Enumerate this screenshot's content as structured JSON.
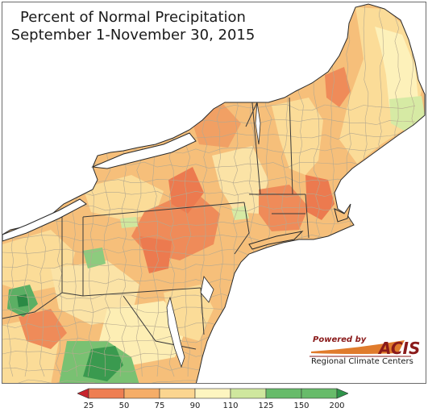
{
  "title": {
    "line1": "Percent of Normal Precipitation",
    "line2": "September 1-November 30, 2015"
  },
  "attribution": {
    "powered_by": "Powered by",
    "name": "ACIS",
    "subtitle": "Regional Climate Centers"
  },
  "legend": {
    "labels": [
      "25",
      "50",
      "75",
      "90",
      "110",
      "125",
      "150",
      "200"
    ],
    "colors": [
      "#c8232c",
      "#ee7e52",
      "#f5ad68",
      "#fbd590",
      "#fdf5c0",
      "#cfe79e",
      "#67bb6a",
      "#2e944a"
    ]
  },
  "colors": {
    "water": "#ffffff",
    "border": "#3a3a3a",
    "county": "#b5a98f",
    "frame": "#6b6b6b"
  }
}
